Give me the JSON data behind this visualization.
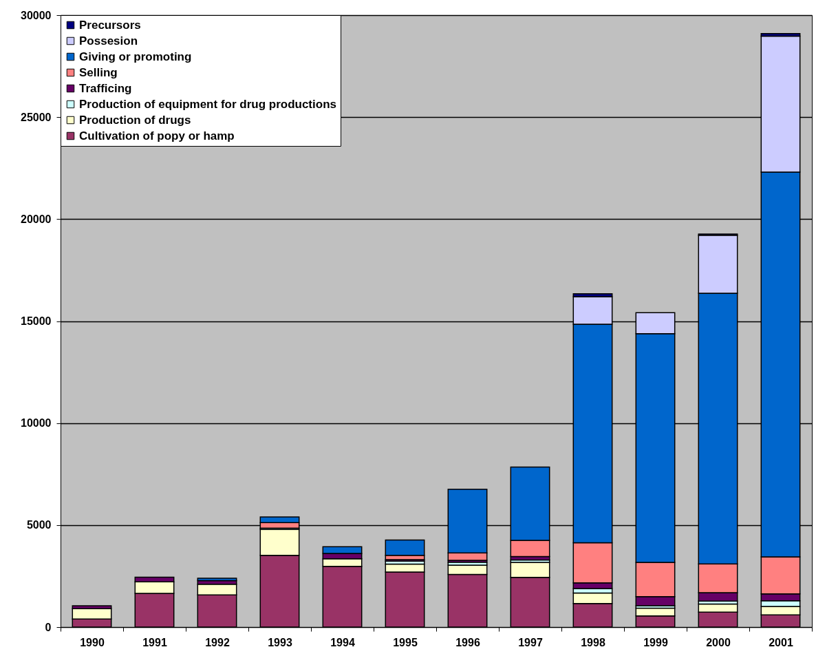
{
  "chart_data": {
    "type": "bar",
    "stacked": true,
    "categories": [
      "1990",
      "1991",
      "1992",
      "1993",
      "1994",
      "1995",
      "1996",
      "1997",
      "1998",
      "1999",
      "2000",
      "2001"
    ],
    "series": [
      {
        "name": "Cultivation of popy or hamp",
        "color": "#993366",
        "values": [
          400,
          1650,
          1580,
          3520,
          2980,
          2700,
          2580,
          2440,
          1160,
          550,
          730,
          600
        ]
      },
      {
        "name": "Production of drugs",
        "color": "#ffffcc",
        "values": [
          500,
          570,
          520,
          1270,
          370,
          390,
          460,
          730,
          510,
          380,
          400,
          410
        ]
      },
      {
        "name": "Production of equipment for drug productions",
        "color": "#ccffff",
        "values": [
          null,
          null,
          null,
          60,
          null,
          140,
          140,
          120,
          220,
          120,
          140,
          280
        ]
      },
      {
        "name": "Trafficing",
        "color": "#660066",
        "values": [
          150,
          230,
          180,
          null,
          260,
          80,
          90,
          170,
          280,
          440,
          420,
          340
        ]
      },
      {
        "name": "Selling",
        "color": "#ff8080",
        "values": [
          null,
          null,
          null,
          270,
          null,
          210,
          370,
          790,
          1960,
          1680,
          1410,
          1810
        ]
      },
      {
        "name": "Giving or promoting",
        "color": "#0066cc",
        "values": [
          null,
          null,
          120,
          280,
          330,
          750,
          3120,
          3600,
          10720,
          11210,
          13270,
          18870
        ]
      },
      {
        "name": "Possesion",
        "color": "#ccccff",
        "values": [
          null,
          null,
          null,
          null,
          null,
          null,
          null,
          null,
          1350,
          1030,
          2840,
          6660
        ]
      },
      {
        "name": "Precursors",
        "color": "#000080",
        "values": [
          null,
          null,
          null,
          null,
          null,
          null,
          null,
          null,
          140,
          null,
          60,
          130
        ]
      }
    ],
    "ylim": [
      0,
      30000
    ],
    "yticks": [
      0,
      5000,
      10000,
      15000,
      20000,
      25000,
      30000
    ],
    "grid": "y",
    "legend": "top left"
  }
}
